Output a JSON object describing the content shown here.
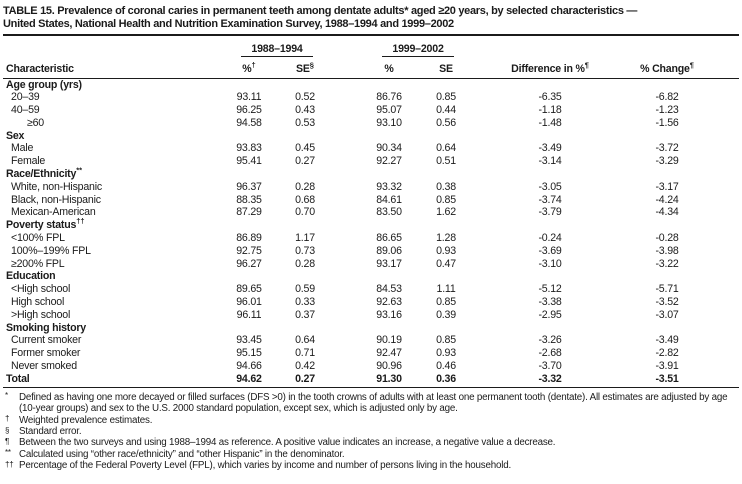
{
  "title": {
    "line1": "TABLE 15. Prevalence of coronal caries in permanent teeth among dentate adults* aged ≥20 years, by selected characteristics —",
    "line2": "United States, National Health and Nutrition Examination Survey, 1988–1994 and 1999–2002"
  },
  "table": {
    "group_headers": [
      "1988–1994",
      "1999–2002"
    ],
    "columns": [
      {
        "label": "Characteristic",
        "sup": ""
      },
      {
        "label": "%",
        "sup": "†"
      },
      {
        "label": "SE",
        "sup": "§"
      },
      {
        "label": "%",
        "sup": ""
      },
      {
        "label": "SE",
        "sup": ""
      },
      {
        "label": "Difference in %",
        "sup": "¶"
      },
      {
        "label": "% Change",
        "sup": "¶"
      }
    ],
    "rows": [
      {
        "type": "section",
        "label": "Age group (yrs)",
        "sup": ""
      },
      {
        "type": "data",
        "label": "20–39",
        "indent": 1,
        "values": [
          "93.11",
          "0.52",
          "86.76",
          "0.85",
          "-6.35",
          "-6.82"
        ]
      },
      {
        "type": "data",
        "label": "40–59",
        "indent": 1,
        "values": [
          "96.25",
          "0.43",
          "95.07",
          "0.44",
          "-1.18",
          "-1.23"
        ]
      },
      {
        "type": "data",
        "label": "≥60",
        "indent": 2,
        "values": [
          "94.58",
          "0.53",
          "93.10",
          "0.56",
          "-1.48",
          "-1.56"
        ]
      },
      {
        "type": "section",
        "label": "Sex",
        "sup": ""
      },
      {
        "type": "data",
        "label": "Male",
        "indent": 1,
        "values": [
          "93.83",
          "0.45",
          "90.34",
          "0.64",
          "-3.49",
          "-3.72"
        ]
      },
      {
        "type": "data",
        "label": "Female",
        "indent": 1,
        "values": [
          "95.41",
          "0.27",
          "92.27",
          "0.51",
          "-3.14",
          "-3.29"
        ]
      },
      {
        "type": "section",
        "label": "Race/Ethnicity",
        "sup": "**"
      },
      {
        "type": "data",
        "label": "White, non-Hispanic",
        "indent": 1,
        "values": [
          "96.37",
          "0.28",
          "93.32",
          "0.38",
          "-3.05",
          "-3.17"
        ]
      },
      {
        "type": "data",
        "label": "Black, non-Hispanic",
        "indent": 1,
        "values": [
          "88.35",
          "0.68",
          "84.61",
          "0.85",
          "-3.74",
          "-4.24"
        ]
      },
      {
        "type": "data",
        "label": "Mexican-American",
        "indent": 1,
        "values": [
          "87.29",
          "0.70",
          "83.50",
          "1.62",
          "-3.79",
          "-4.34"
        ]
      },
      {
        "type": "section",
        "label": "Poverty status",
        "sup": "††"
      },
      {
        "type": "data",
        "label": "<100% FPL",
        "indent": 1,
        "values": [
          "86.89",
          "1.17",
          "86.65",
          "1.28",
          "-0.24",
          "-0.28"
        ]
      },
      {
        "type": "data",
        "label": "100%–199% FPL",
        "indent": 1,
        "values": [
          "92.75",
          "0.73",
          "89.06",
          "0.93",
          "-3.69",
          "-3.98"
        ]
      },
      {
        "type": "data",
        "label": "≥200% FPL",
        "indent": 1,
        "values": [
          "96.27",
          "0.28",
          "93.17",
          "0.47",
          "-3.10",
          "-3.22"
        ]
      },
      {
        "type": "section",
        "label": "Education",
        "sup": ""
      },
      {
        "type": "data",
        "label": "<High school",
        "indent": 1,
        "values": [
          "89.65",
          "0.59",
          "84.53",
          "1.11",
          "-5.12",
          "-5.71"
        ]
      },
      {
        "type": "data",
        "label": "High school",
        "indent": 1,
        "values": [
          "96.01",
          "0.33",
          "92.63",
          "0.85",
          "-3.38",
          "-3.52"
        ]
      },
      {
        "type": "data",
        "label": ">High school",
        "indent": 1,
        "values": [
          "96.11",
          "0.37",
          "93.16",
          "0.39",
          "-2.95",
          "-3.07"
        ]
      },
      {
        "type": "section",
        "label": "Smoking history",
        "sup": ""
      },
      {
        "type": "data",
        "label": "Current smoker",
        "indent": 1,
        "values": [
          "93.45",
          "0.64",
          "90.19",
          "0.85",
          "-3.26",
          "-3.49"
        ]
      },
      {
        "type": "data",
        "label": "Former smoker",
        "indent": 1,
        "values": [
          "95.15",
          "0.71",
          "92.47",
          "0.93",
          "-2.68",
          "-2.82"
        ]
      },
      {
        "type": "data",
        "label": "Never smoked",
        "indent": 1,
        "values": [
          "94.66",
          "0.42",
          "90.96",
          "0.46",
          "-3.70",
          "-3.91"
        ]
      },
      {
        "type": "total",
        "label": "Total",
        "indent": 0,
        "values": [
          "94.62",
          "0.27",
          "91.30",
          "0.36",
          "-3.32",
          "-3.51"
        ]
      }
    ]
  },
  "footnotes": [
    {
      "marker": "*",
      "text": "Defined as having one more decayed or filled surfaces (DFS >0) in the tooth crowns of adults with at least one permanent tooth (dentate). All estimates are adjusted by age (10-year groups) and sex to the U.S. 2000 standard population, except sex, which is adjusted only by age."
    },
    {
      "marker": "†",
      "text": "Weighted prevalence estimates."
    },
    {
      "marker": "§",
      "text": "Standard error."
    },
    {
      "marker": "¶",
      "text": "Between the two surveys and using 1988–1994 as reference. A positive value indicates an increase, a negative value a decrease."
    },
    {
      "marker": "**",
      "text": "Calculated using “other race/ethnicity” and “other Hispanic” in the denominator."
    },
    {
      "marker": "††",
      "text": "Percentage of the Federal Poverty Level (FPL), which varies by income and number of persons living in the household."
    }
  ]
}
